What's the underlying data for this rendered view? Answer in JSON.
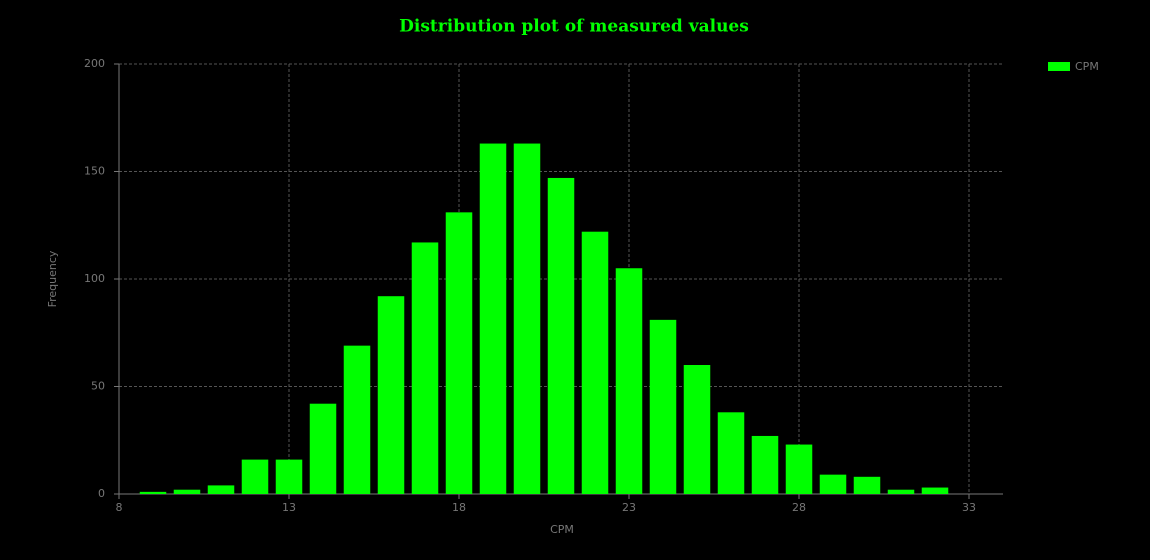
{
  "chart_data": {
    "type": "histogram",
    "title": "Distribution plot of measured values",
    "x_label": "CPM",
    "y_label": "Frequency",
    "bins": [
      8.5,
      9.5,
      10.5,
      11.5,
      12.5,
      13.5,
      14.5,
      15.5,
      16.5,
      17.5,
      18.5,
      19.5,
      20.5,
      21.5,
      22.5,
      23.5,
      24.5,
      25.5,
      26.5,
      27.5,
      28.5,
      29.5,
      30.5,
      31.5,
      32.5
    ],
    "series": [
      {
        "name": "CPM",
        "color": "#00ff00",
        "values": [
          1,
          2,
          4,
          16,
          16,
          42,
          69,
          92,
          117,
          131,
          163,
          163,
          147,
          122,
          105,
          81,
          60,
          38,
          27,
          23,
          9,
          8,
          2,
          3
        ]
      }
    ],
    "xlim": [
      8,
      34
    ],
    "xticks": [
      8,
      13,
      18,
      23,
      28,
      33
    ],
    "ylim": [
      0,
      200
    ],
    "yticks": [
      0,
      50,
      100,
      150,
      200
    ],
    "grid": true,
    "legend": "top-right"
  }
}
